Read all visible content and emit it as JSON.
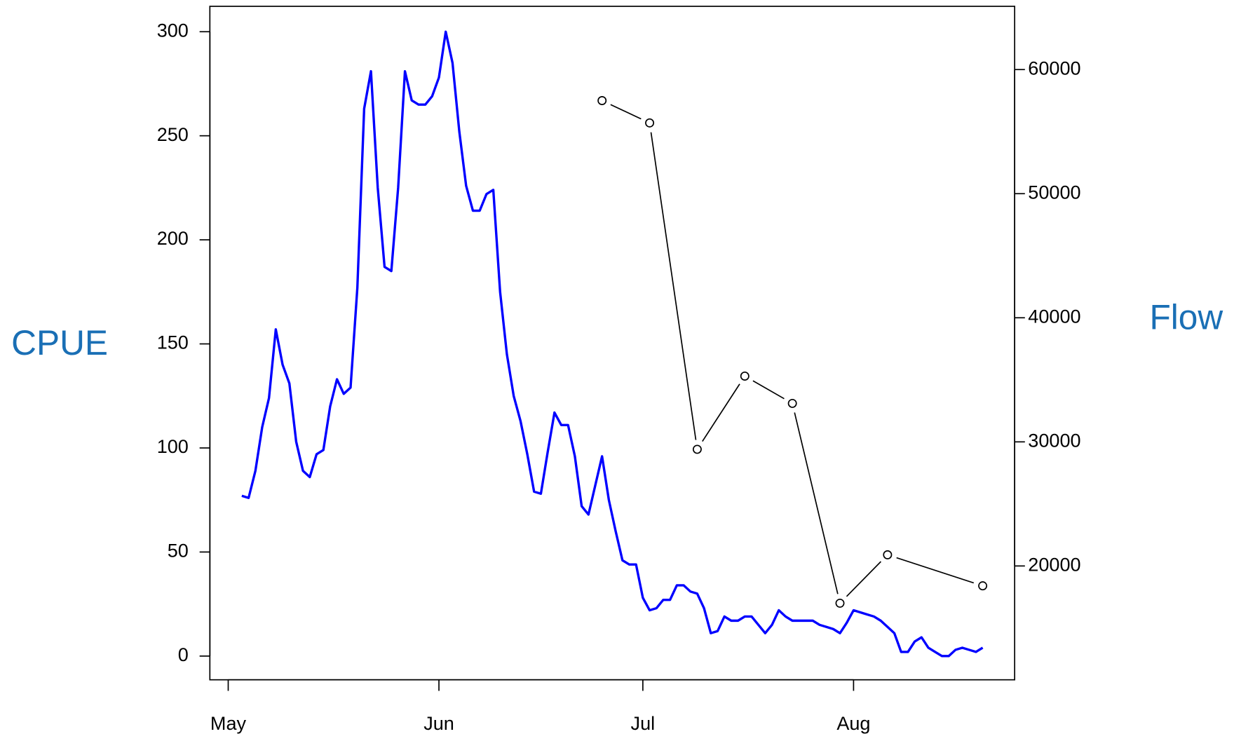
{
  "chart_data": {
    "type": "line",
    "xlim": [
      -2.7,
      115.7
    ],
    "xticks": [
      {
        "value": 0,
        "label": "May"
      },
      {
        "value": 31,
        "label": "Jun"
      },
      {
        "value": 61,
        "label": "Jul"
      },
      {
        "value": 92,
        "label": "Aug"
      }
    ],
    "ylim": [
      -11.4,
      312.2
    ],
    "yticks": [
      0,
      50,
      100,
      150,
      200,
      250,
      300
    ],
    "y2lim": [
      10828,
      65096
    ],
    "y2ticks": [
      20000,
      30000,
      40000,
      50000,
      60000
    ],
    "series": [
      {
        "name": "CPUE",
        "color": "#0000ff",
        "axis": "y",
        "x": [
          2,
          3,
          4,
          5,
          6,
          7,
          8,
          9,
          10,
          11,
          12,
          13,
          14,
          15,
          16,
          17,
          18,
          19,
          20,
          21,
          22,
          23,
          24,
          25,
          26,
          27,
          28,
          29,
          30,
          31,
          32,
          33,
          34,
          35,
          36,
          37,
          38,
          39,
          40,
          41,
          42,
          43,
          44,
          45,
          46,
          47,
          48,
          49,
          50,
          51,
          52,
          53,
          54,
          55,
          56,
          57,
          58,
          59,
          60,
          61,
          62,
          63,
          64,
          65,
          66,
          67,
          68,
          69,
          70,
          71,
          72,
          73,
          74,
          75,
          76,
          77,
          78,
          79,
          80,
          81,
          82,
          83,
          84,
          85,
          86,
          87,
          88,
          89,
          90,
          91,
          92,
          93,
          94,
          95,
          96,
          97,
          98,
          99,
          100,
          101,
          102,
          103,
          104,
          105,
          106,
          107,
          108,
          109,
          110,
          111
        ],
        "values": [
          77,
          76,
          89,
          110,
          124,
          157,
          140,
          131,
          103,
          89,
          86,
          97,
          99,
          120,
          133,
          126,
          129,
          177,
          263,
          281,
          225,
          187,
          185,
          225,
          281,
          267,
          265,
          265,
          269,
          278,
          300,
          285,
          252,
          226,
          214,
          214,
          222,
          224,
          175,
          145,
          125,
          113,
          97,
          79,
          78,
          98,
          117,
          111,
          111,
          96,
          72,
          68,
          82,
          96,
          75,
          60,
          46,
          44,
          44,
          28,
          22,
          23,
          27,
          27,
          34,
          34,
          31,
          30,
          23,
          11,
          12,
          19,
          17,
          17,
          19,
          19,
          15,
          11,
          15,
          22,
          19,
          17,
          17,
          17,
          17,
          15,
          14,
          13,
          11,
          16,
          22,
          21,
          20,
          19,
          17,
          14,
          11,
          2,
          2,
          7,
          9,
          4,
          2,
          0,
          0,
          3,
          4,
          3,
          2,
          4
        ]
      },
      {
        "name": "Flow",
        "color": "#000000",
        "axis": "y2",
        "x": [
          55,
          62,
          69,
          76,
          83,
          90,
          97,
          111
        ],
        "values": [
          57500,
          55700,
          29400,
          35300,
          33100,
          17000,
          20900,
          18400
        ]
      }
    ]
  }
}
